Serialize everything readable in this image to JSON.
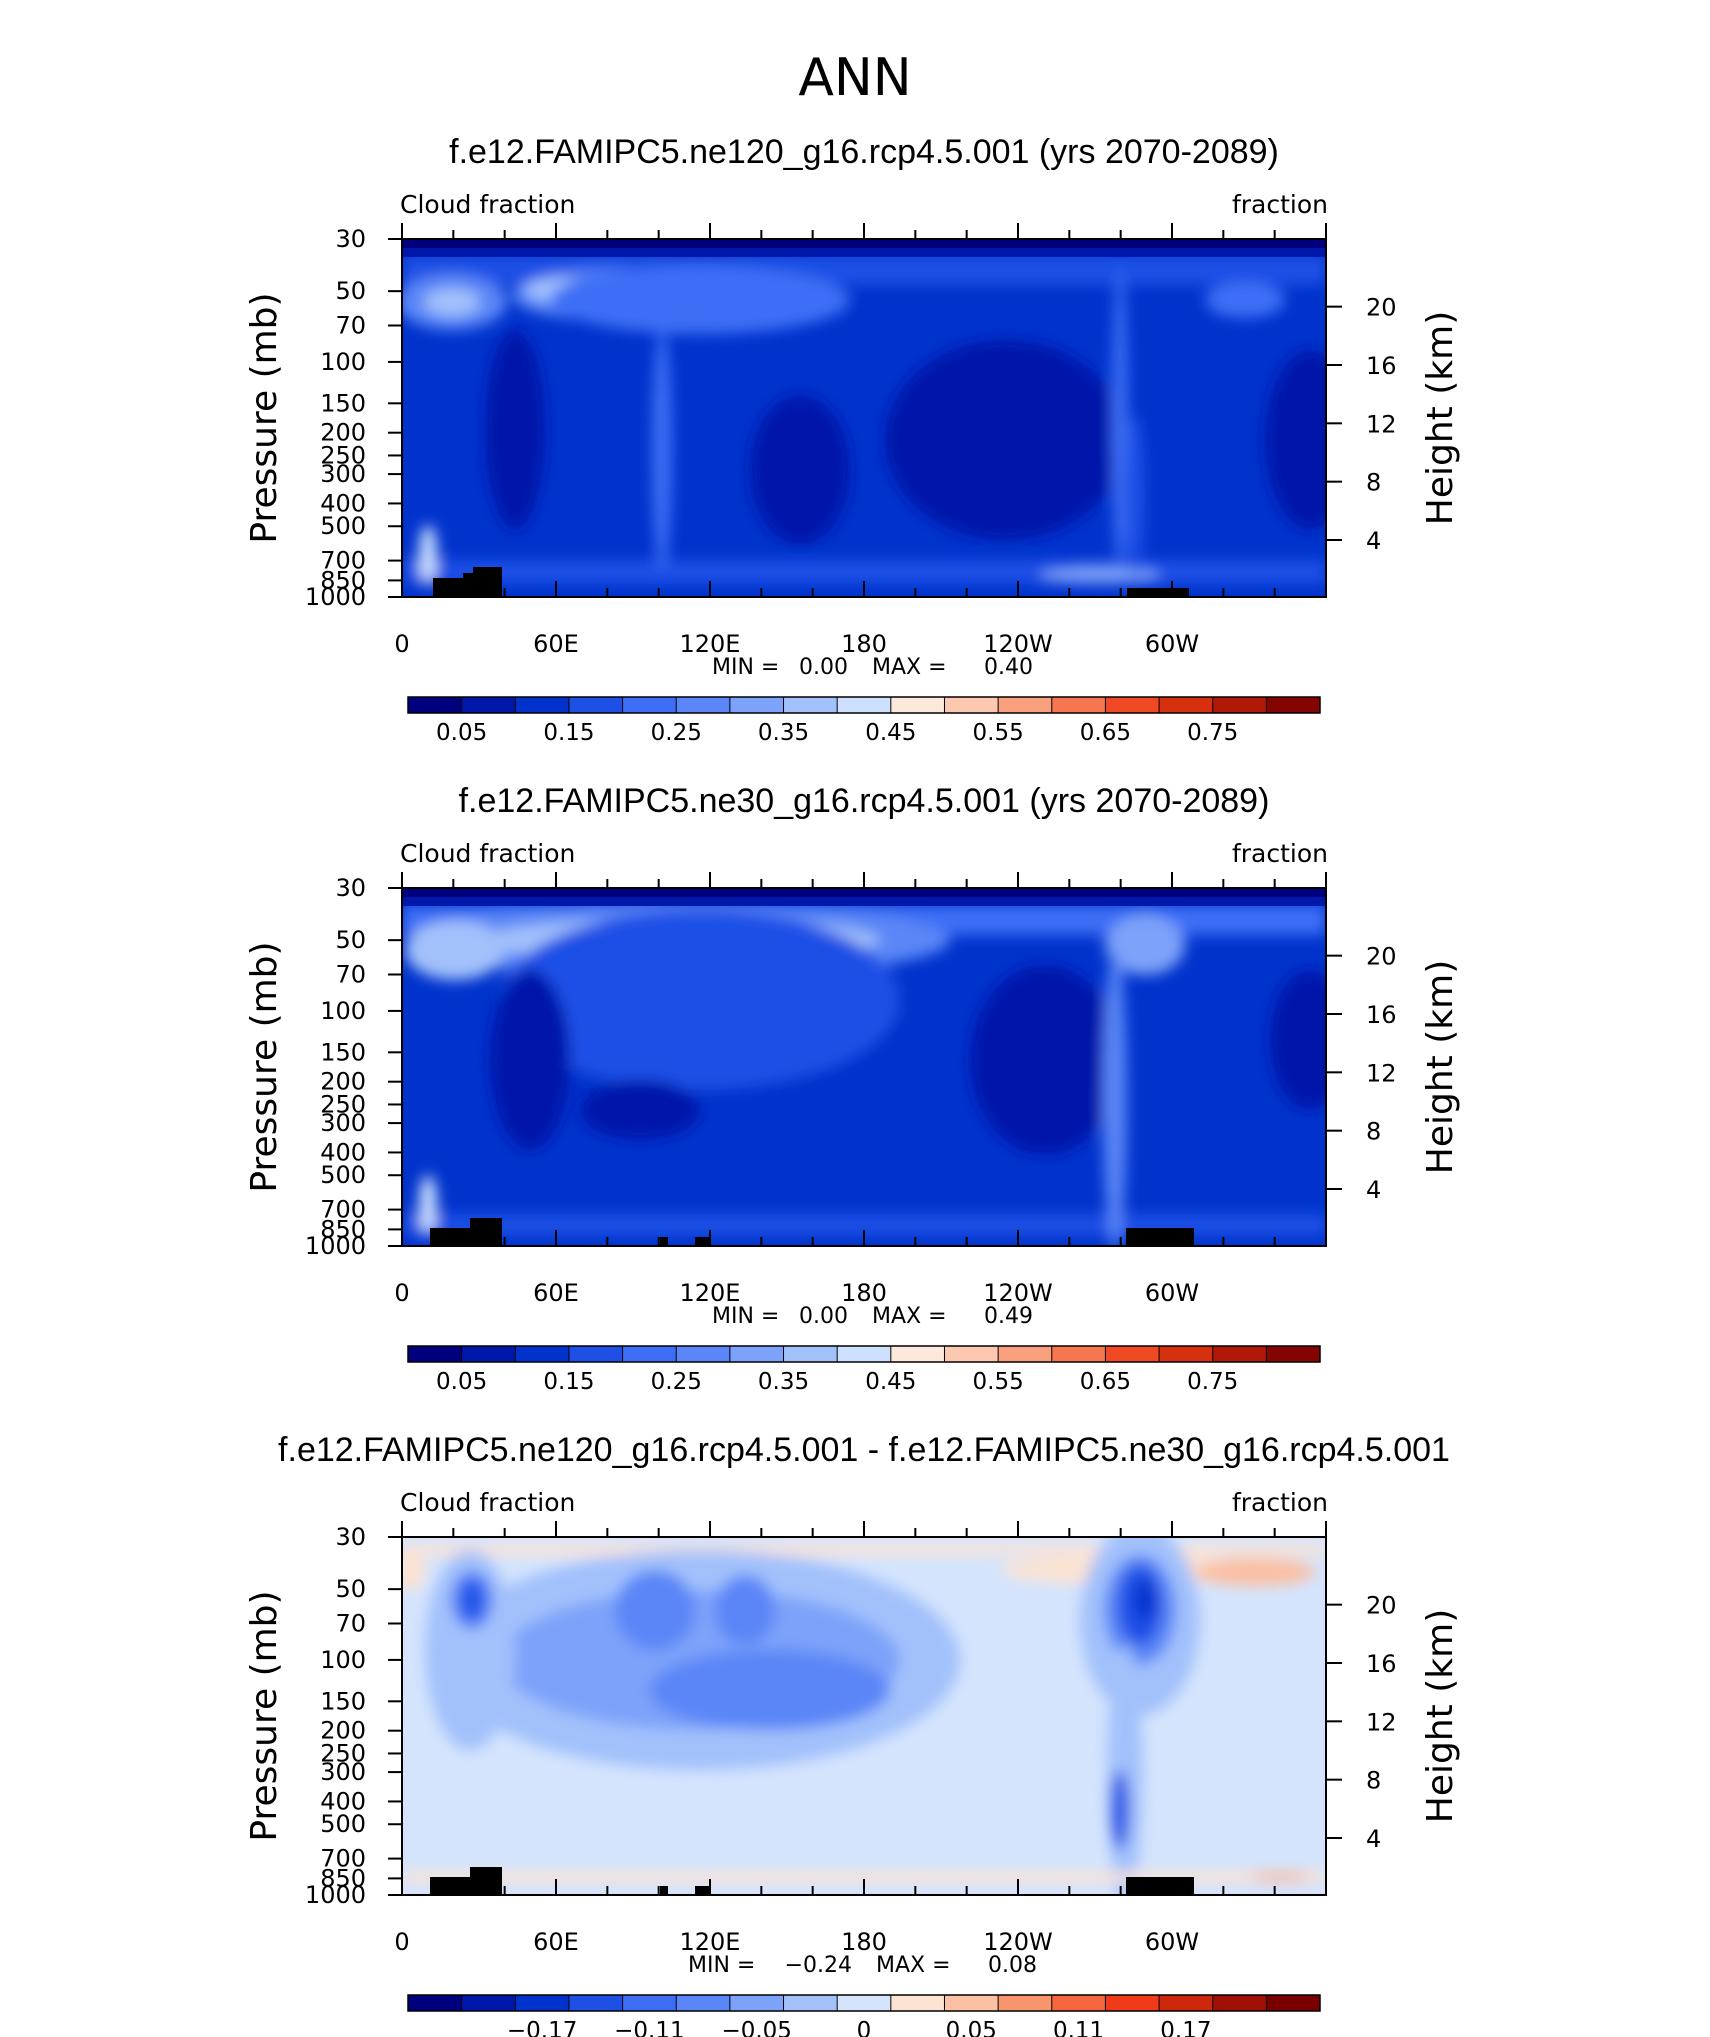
{
  "header": {
    "title": "ANN"
  },
  "colorbar_main": [
    "#00007f",
    "#0018aa",
    "#0033cc",
    "#1f50e5",
    "#3d6ef5",
    "#5a86f7",
    "#7da2f9",
    "#a2c1fb",
    "#cde0fe",
    "#fde9dc",
    "#fcc9b0",
    "#f9a17e",
    "#f6764f",
    "#ef4a24",
    "#d7300f",
    "#b01908",
    "#830400"
  ],
  "colorbar_diff": [
    "#00007f",
    "#0018aa",
    "#0033cc",
    "#1f50e5",
    "#3d6ef5",
    "#5a86f7",
    "#7da2f9",
    "#a2c1fb",
    "#d4e4fd",
    "#fde3d2",
    "#fcc0a2",
    "#f9956d",
    "#f6653f",
    "#ef3b1a",
    "#cc260b",
    "#a11004",
    "#7a0000"
  ],
  "panels": [
    {
      "title": "f.e12.FAMIPC5.ne120_g16.rcp4.5.001 (yrs 2070-2089)",
      "left_label": "Cloud fraction",
      "right_label": "fraction",
      "stats": {
        "min_label": "MIN =",
        "min": "0.00",
        "max_label": "MAX =",
        "max": "0.40"
      },
      "colorbar_labels": [
        "0.05",
        "0.15",
        "0.25",
        "0.35",
        "0.45",
        "0.55",
        "0.65",
        "0.75"
      ]
    },
    {
      "title": "f.e12.FAMIPC5.ne30_g16.rcp4.5.001 (yrs 2070-2089)",
      "left_label": "Cloud fraction",
      "right_label": "fraction",
      "stats": {
        "min_label": "MIN =",
        "min": "0.00",
        "max_label": "MAX =",
        "max": "0.49"
      },
      "colorbar_labels": [
        "0.05",
        "0.15",
        "0.25",
        "0.35",
        "0.45",
        "0.55",
        "0.65",
        "0.75"
      ]
    },
    {
      "title": "f.e12.FAMIPC5.ne120_g16.rcp4.5.001 - f.e12.FAMIPC5.ne30_g16.rcp4.5.001",
      "left_label": "Cloud fraction",
      "right_label": "fraction",
      "stats": {
        "min_label": "MIN =",
        "min": "−0.24",
        "max_label": "MAX =",
        "max": "0.08"
      },
      "colorbar_labels": [
        "−0.17",
        "−0.11",
        "−0.05",
        "0",
        "0.05",
        "0.11",
        "0.17"
      ]
    }
  ],
  "chart_data": [
    {
      "type": "heatmap",
      "title": "f.e12.FAMIPC5.ne120_g16.rcp4.5.001 (yrs 2070-2089)",
      "variable": "Cloud fraction",
      "units": "fraction",
      "xlabel": "",
      "ylabel": "Pressure (mb)",
      "ylabel_right": "Height (km)",
      "x_ticks": [
        "0",
        "60E",
        "120E",
        "180",
        "120W",
        "60W"
      ],
      "y_ticks": [
        "30",
        "50",
        "70",
        "100",
        "150",
        "200",
        "250",
        "300",
        "400",
        "500",
        "700",
        "850",
        "1000"
      ],
      "y_right_ticks": [
        "20",
        "16",
        "12",
        "8",
        "4"
      ],
      "y_scale": "log",
      "ylim": [
        1000,
        30
      ],
      "min": 0.0,
      "max": 0.4,
      "colorbar_labels": [
        0.05,
        0.15,
        0.25,
        0.35,
        0.45,
        0.55,
        0.65,
        0.75
      ]
    },
    {
      "type": "heatmap",
      "title": "f.e12.FAMIPC5.ne30_g16.rcp4.5.001 (yrs 2070-2089)",
      "variable": "Cloud fraction",
      "units": "fraction",
      "xlabel": "",
      "ylabel": "Pressure (mb)",
      "ylabel_right": "Height (km)",
      "x_ticks": [
        "0",
        "60E",
        "120E",
        "180",
        "120W",
        "60W"
      ],
      "y_ticks": [
        "30",
        "50",
        "70",
        "100",
        "150",
        "200",
        "250",
        "300",
        "400",
        "500",
        "700",
        "850",
        "1000"
      ],
      "y_right_ticks": [
        "20",
        "16",
        "12",
        "8",
        "4"
      ],
      "y_scale": "log",
      "ylim": [
        1000,
        30
      ],
      "min": 0.0,
      "max": 0.49,
      "colorbar_labels": [
        0.05,
        0.15,
        0.25,
        0.35,
        0.45,
        0.55,
        0.65,
        0.75
      ]
    },
    {
      "type": "heatmap",
      "title": "f.e12.FAMIPC5.ne120_g16.rcp4.5.001 - f.e12.FAMIPC5.ne30_g16.rcp4.5.001",
      "variable": "Cloud fraction",
      "units": "fraction",
      "xlabel": "",
      "ylabel": "Pressure (mb)",
      "ylabel_right": "Height (km)",
      "x_ticks": [
        "0",
        "60E",
        "120E",
        "180",
        "120W",
        "60W"
      ],
      "y_ticks": [
        "30",
        "50",
        "70",
        "100",
        "150",
        "200",
        "250",
        "300",
        "400",
        "500",
        "700",
        "850",
        "1000"
      ],
      "y_right_ticks": [
        "20",
        "16",
        "12",
        "8",
        "4"
      ],
      "y_scale": "log",
      "ylim": [
        1000,
        30
      ],
      "min": -0.24,
      "max": 0.08,
      "colorbar_labels": [
        -0.17,
        -0.11,
        -0.05,
        0,
        0.05,
        0.11,
        0.17
      ]
    }
  ]
}
